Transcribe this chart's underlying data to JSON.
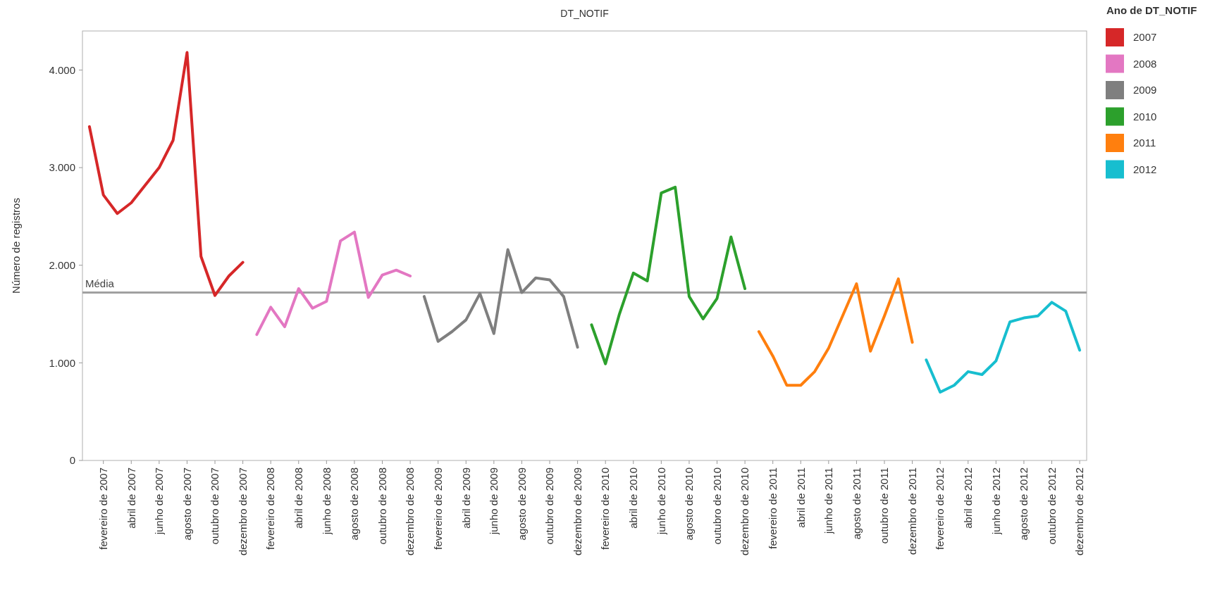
{
  "chart_data": {
    "type": "line",
    "title": "DT_NOTIF",
    "ylabel": "Número de registros",
    "legend_title": "Ano de DT_NOTIF",
    "legend": "right",
    "categories": [
      null,
      "fevereiro de 2007",
      null,
      "abril de 2007",
      null,
      "junho de 2007",
      null,
      "agosto de 2007",
      null,
      "outubro de 2007",
      null,
      "dezembro de 2007",
      null,
      "fevereiro de 2008",
      null,
      "abril de 2008",
      null,
      "junho de 2008",
      null,
      "agosto de 2008",
      null,
      "outubro de 2008",
      null,
      "dezembro de 2008",
      null,
      "fevereiro de 2009",
      null,
      "abril de 2009",
      null,
      "junho de 2009",
      null,
      "agosto de 2009",
      null,
      "outubro de 2009",
      null,
      "dezembro de 2009",
      null,
      "fevereiro de 2010",
      null,
      "abril de 2010",
      null,
      "junho de 2010",
      null,
      "agosto de 2010",
      null,
      "outubro de 2010",
      null,
      "dezembro de 2010",
      null,
      "fevereiro de 2011",
      null,
      "abril de 2011",
      null,
      "junho de 2011",
      null,
      "agosto de 2011",
      null,
      "outubro de 2011",
      null,
      "dezembro de 2011",
      null,
      "fevereiro de 2012",
      null,
      "abril de 2012",
      null,
      "junho de 2012",
      null,
      "agosto de 2012",
      null,
      "outubro de 2012",
      null,
      "dezembro de 2012"
    ],
    "ylim": [
      0,
      4400
    ],
    "yticks": [
      0,
      {
        "value": 1000,
        "label": "1.000"
      },
      {
        "value": 2000,
        "label": "2.000"
      },
      {
        "value": 3000,
        "label": "3.000"
      },
      {
        "value": 4000,
        "label": "4.000"
      }
    ],
    "ref_lines": [
      {
        "axis": "y",
        "value": 1720,
        "label": "Média",
        "color": "#a0a0a0"
      }
    ],
    "series": [
      {
        "name": "2007",
        "color": "#d62728",
        "values": [
          3420,
          2720,
          2530,
          2640,
          2820,
          3000,
          3280,
          4180,
          2090,
          1690,
          1890,
          2030,
          null,
          null,
          null,
          null,
          null,
          null,
          null,
          null,
          null,
          null,
          null,
          null,
          null,
          null,
          null,
          null,
          null,
          null,
          null,
          null,
          null,
          null,
          null,
          null,
          null,
          null,
          null,
          null,
          null,
          null,
          null,
          null,
          null,
          null,
          null,
          null,
          null,
          null,
          null,
          null,
          null,
          null,
          null,
          null,
          null,
          null,
          null,
          null,
          null,
          null,
          null,
          null,
          null,
          null,
          null,
          null,
          null,
          null,
          null,
          null
        ]
      },
      {
        "name": "2008",
        "color": "#e377c2",
        "values": [
          null,
          null,
          null,
          null,
          null,
          null,
          null,
          null,
          null,
          null,
          null,
          null,
          1290,
          1570,
          1370,
          1760,
          1560,
          1630,
          2250,
          2340,
          1670,
          1900,
          1950,
          1890,
          null,
          null,
          null,
          null,
          null,
          null,
          null,
          null,
          null,
          null,
          null,
          null,
          null,
          null,
          null,
          null,
          null,
          null,
          null,
          null,
          null,
          null,
          null,
          null,
          null,
          null,
          null,
          null,
          null,
          null,
          null,
          null,
          null,
          null,
          null,
          null,
          null,
          null,
          null,
          null,
          null,
          null,
          null,
          null,
          null,
          null,
          null,
          null
        ]
      },
      {
        "name": "2009",
        "color": "#7f7f7f",
        "values": [
          null,
          null,
          null,
          null,
          null,
          null,
          null,
          null,
          null,
          null,
          null,
          null,
          null,
          null,
          null,
          null,
          null,
          null,
          null,
          null,
          null,
          null,
          null,
          null,
          1680,
          1220,
          1320,
          1440,
          1710,
          1300,
          2160,
          1720,
          1870,
          1850,
          1680,
          1160,
          null,
          null,
          null,
          null,
          null,
          null,
          null,
          null,
          null,
          null,
          null,
          null,
          null,
          null,
          null,
          null,
          null,
          null,
          null,
          null,
          null,
          null,
          null,
          null,
          null,
          null,
          null,
          null,
          null,
          null,
          null,
          null,
          null,
          null,
          null,
          null
        ]
      },
      {
        "name": "2010",
        "color": "#2ca02c",
        "values": [
          null,
          null,
          null,
          null,
          null,
          null,
          null,
          null,
          null,
          null,
          null,
          null,
          null,
          null,
          null,
          null,
          null,
          null,
          null,
          null,
          null,
          null,
          null,
          null,
          null,
          null,
          null,
          null,
          null,
          null,
          null,
          null,
          null,
          null,
          null,
          null,
          1390,
          990,
          1500,
          1920,
          1840,
          2740,
          2800,
          1680,
          1450,
          1660,
          2290,
          1760,
          null,
          null,
          null,
          null,
          null,
          null,
          null,
          null,
          null,
          null,
          null,
          null,
          null,
          null,
          null,
          null,
          null,
          null,
          null,
          null,
          null,
          null,
          null,
          null
        ]
      },
      {
        "name": "2011",
        "color": "#ff7f0e",
        "values": [
          null,
          null,
          null,
          null,
          null,
          null,
          null,
          null,
          null,
          null,
          null,
          null,
          null,
          null,
          null,
          null,
          null,
          null,
          null,
          null,
          null,
          null,
          null,
          null,
          null,
          null,
          null,
          null,
          null,
          null,
          null,
          null,
          null,
          null,
          null,
          null,
          null,
          null,
          null,
          null,
          null,
          null,
          null,
          null,
          null,
          null,
          null,
          null,
          1320,
          1070,
          770,
          770,
          910,
          1150,
          1480,
          1810,
          1120,
          1480,
          1860,
          1210,
          null,
          null,
          null,
          null,
          null,
          null,
          null,
          null,
          null,
          null,
          null,
          null
        ]
      },
      {
        "name": "2012",
        "color": "#17becf",
        "values": [
          null,
          null,
          null,
          null,
          null,
          null,
          null,
          null,
          null,
          null,
          null,
          null,
          null,
          null,
          null,
          null,
          null,
          null,
          null,
          null,
          null,
          null,
          null,
          null,
          null,
          null,
          null,
          null,
          null,
          null,
          null,
          null,
          null,
          null,
          null,
          null,
          null,
          null,
          null,
          null,
          null,
          null,
          null,
          null,
          null,
          null,
          null,
          null,
          null,
          null,
          null,
          null,
          null,
          null,
          null,
          null,
          null,
          null,
          null,
          null,
          1030,
          700,
          770,
          910,
          880,
          1020,
          1420,
          1460,
          1480,
          1620,
          1530,
          1130
        ]
      }
    ]
  }
}
